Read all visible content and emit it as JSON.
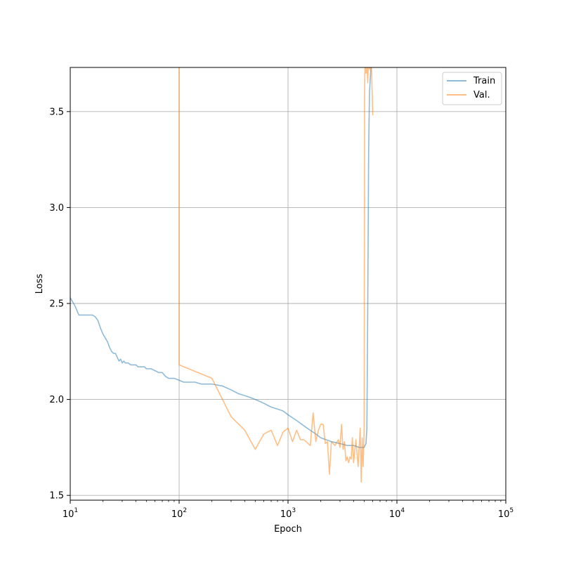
{
  "chart_data": {
    "type": "line",
    "title": "",
    "xlabel": "Epoch",
    "ylabel": "Loss",
    "xscale": "log",
    "xlim": [
      10,
      100000
    ],
    "ylim": [
      1.475,
      3.73
    ],
    "grid": true,
    "legend_position": "top-right",
    "x_ticks": [
      {
        "value": 10,
        "base": "10",
        "exp": "1"
      },
      {
        "value": 100,
        "base": "10",
        "exp": "2"
      },
      {
        "value": 1000,
        "base": "10",
        "exp": "3"
      },
      {
        "value": 10000,
        "base": "10",
        "exp": "4"
      },
      {
        "value": 100000,
        "base": "10",
        "exp": "5"
      }
    ],
    "y_ticks": [
      {
        "value": 1.5,
        "label": "1.5"
      },
      {
        "value": 2.0,
        "label": "2.0"
      },
      {
        "value": 2.5,
        "label": "2.5"
      },
      {
        "value": 3.0,
        "label": "3.0"
      },
      {
        "value": 3.5,
        "label": "3.5"
      }
    ],
    "series": [
      {
        "name": "Train",
        "color": "#1f77b4",
        "x": [
          10,
          11,
          12,
          13,
          15,
          16,
          17,
          18,
          19,
          20,
          21,
          22,
          23,
          24,
          25,
          26,
          28,
          29,
          30,
          31,
          32,
          34,
          36,
          38,
          40,
          42,
          44,
          46,
          48,
          50,
          55,
          60,
          65,
          70,
          75,
          80,
          90,
          100,
          110,
          120,
          140,
          160,
          180,
          200,
          250,
          300,
          350,
          400,
          450,
          500,
          600,
          700,
          800,
          900,
          1000,
          1200,
          1500,
          1800,
          2000,
          2500,
          3000,
          3500,
          4000,
          4500,
          5000,
          5200,
          5300,
          5400,
          5500,
          5600,
          5800
        ],
        "y": [
          2.53,
          2.49,
          2.44,
          2.44,
          2.44,
          2.44,
          2.43,
          2.41,
          2.37,
          2.34,
          2.32,
          2.3,
          2.27,
          2.25,
          2.24,
          2.24,
          2.2,
          2.21,
          2.19,
          2.2,
          2.19,
          2.19,
          2.18,
          2.18,
          2.18,
          2.17,
          2.17,
          2.17,
          2.17,
          2.16,
          2.16,
          2.15,
          2.14,
          2.14,
          2.12,
          2.11,
          2.11,
          2.1,
          2.09,
          2.09,
          2.09,
          2.08,
          2.08,
          2.08,
          2.07,
          2.05,
          2.03,
          2.02,
          2.01,
          2.0,
          1.98,
          1.96,
          1.95,
          1.94,
          1.92,
          1.89,
          1.85,
          1.82,
          1.8,
          1.78,
          1.77,
          1.76,
          1.76,
          1.75,
          1.75,
          1.77,
          1.85,
          2.5,
          3.3,
          3.6,
          3.75
        ]
      },
      {
        "name": "Val.",
        "color": "#ff7f0e",
        "x": [
          100,
          100,
          200,
          300,
          400,
          500,
          600,
          700,
          800,
          900,
          1000,
          1100,
          1200,
          1300,
          1400,
          1600,
          1700,
          1800,
          1900,
          2000,
          2100,
          2200,
          2300,
          2400,
          2500,
          2700,
          2900,
          3000,
          3100,
          3200,
          3300,
          3400,
          3500,
          3600,
          3700,
          3800,
          3900,
          4000,
          4200,
          4400,
          4600,
          4700,
          4800,
          4900,
          5000,
          5050,
          5100,
          5200,
          5300,
          5400,
          5500,
          5600,
          5800,
          6000
        ],
        "y": [
          3.8,
          2.18,
          2.11,
          1.91,
          1.84,
          1.74,
          1.82,
          1.84,
          1.76,
          1.83,
          1.85,
          1.78,
          1.84,
          1.79,
          1.79,
          1.76,
          1.93,
          1.78,
          1.84,
          1.87,
          1.87,
          1.77,
          1.78,
          1.61,
          1.78,
          1.76,
          1.79,
          1.75,
          1.87,
          1.74,
          1.78,
          1.68,
          1.7,
          1.67,
          1.7,
          1.69,
          1.8,
          1.67,
          1.79,
          1.65,
          1.85,
          1.57,
          1.8,
          1.65,
          1.85,
          3.6,
          3.8,
          3.7,
          3.75,
          3.65,
          3.8,
          3.72,
          3.8,
          3.48
        ]
      }
    ]
  }
}
